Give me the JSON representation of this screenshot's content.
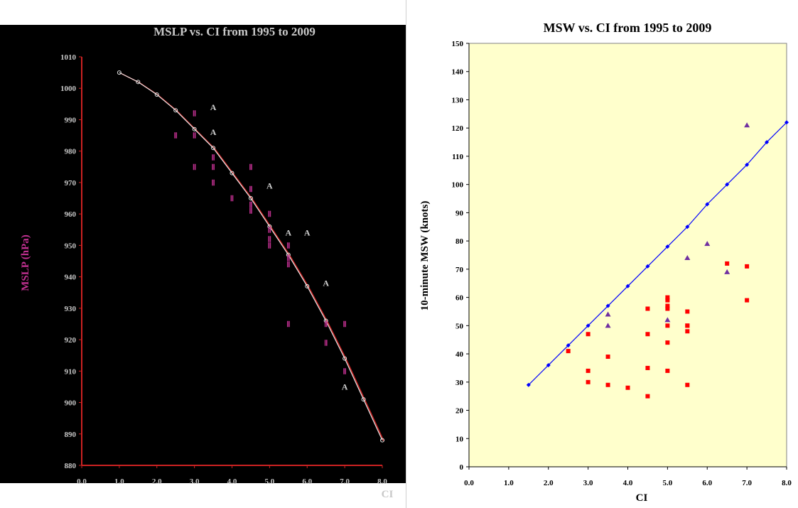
{
  "chart_data": [
    {
      "type": "scatter",
      "title": "MSLP vs. CI from 1995 to 2009",
      "xlabel": "CI",
      "ylabel": "MSLP (hPa)",
      "xlim": [
        0,
        8
      ],
      "ylim": [
        880,
        1010
      ],
      "x_ticks": [
        "0.0",
        "1.0",
        "2.0",
        "3.0",
        "4.0",
        "5.0",
        "6.0",
        "7.0",
        "8.0"
      ],
      "y_ticks": [
        "880",
        "890",
        "900",
        "910",
        "920",
        "930",
        "940",
        "950",
        "960",
        "970",
        "980",
        "990",
        "1000",
        "1010"
      ],
      "grid": false,
      "legend": "none",
      "colors": {
        "background": "#000000",
        "curve": "#e8e8e8",
        "curve_shadow": "#cc2222",
        "markers": "#c03090",
        "axis": "#cc2222",
        "text": "#c8c8c8"
      },
      "series": [
        {
          "marker": "line-circle",
          "x": [
            1.0,
            1.5,
            2.0,
            2.5,
            3.0,
            3.5,
            4.0,
            4.5,
            5.0,
            5.5,
            6.0,
            6.5,
            7.0,
            7.5,
            8.0
          ],
          "y": [
            1005,
            1002,
            998,
            993,
            987,
            981,
            973,
            965,
            956,
            947,
            937,
            926,
            914,
            901,
            888
          ]
        },
        {
          "marker": "triangle",
          "x": [
            3.5,
            3.5,
            5.0,
            5.5,
            6.0,
            6.5,
            7.0
          ],
          "y": [
            994,
            986,
            969,
            954,
            954,
            938,
            905
          ]
        },
        {
          "marker": "square",
          "x": [
            2.5,
            3.0,
            3.0,
            3.0,
            3.5,
            3.5,
            3.5,
            4.0,
            4.5,
            4.5,
            4.5,
            4.5,
            5.0,
            5.0,
            5.0,
            5.0,
            5.5,
            5.5,
            5.5,
            5.5,
            6.5,
            6.5,
            7.0,
            7.0
          ],
          "y": [
            985,
            992,
            985,
            975,
            975,
            970,
            978,
            965,
            975,
            968,
            961,
            963,
            960,
            955,
            950,
            952,
            950,
            946,
            925,
            944,
            925,
            919,
            925,
            910
          ]
        }
      ]
    },
    {
      "type": "scatter",
      "title": "MSW vs. CI  from 1995 to 2009",
      "xlabel": "CI",
      "ylabel": "10-minute MSW (knots)",
      "xlim": [
        0,
        8
      ],
      "ylim": [
        0,
        150
      ],
      "x_ticks": [
        "0.0",
        "1.0",
        "2.0",
        "3.0",
        "4.0",
        "5.0",
        "6.0",
        "7.0",
        "8.0"
      ],
      "y_ticks": [
        "0",
        "10",
        "20",
        "30",
        "40",
        "50",
        "60",
        "70",
        "80",
        "90",
        "100",
        "110",
        "120",
        "130",
        "140",
        "150"
      ],
      "grid": false,
      "legend": "none",
      "colors": {
        "background": "#ffffcc",
        "line": "#0000ff",
        "triangle": "#7030a0",
        "square": "#ff0000"
      },
      "series": [
        {
          "marker": "line-diamond",
          "x": [
            1.5,
            2.0,
            2.5,
            3.0,
            3.5,
            4.0,
            4.5,
            5.0,
            5.5,
            6.0,
            6.5,
            7.0,
            7.5,
            8.0
          ],
          "y": [
            29,
            36,
            43,
            50,
            57,
            64,
            71,
            78,
            85,
            93,
            100,
            107,
            115,
            122
          ]
        },
        {
          "marker": "triangle",
          "x": [
            3.5,
            3.5,
            5.0,
            5.5,
            6.0,
            6.5,
            7.0
          ],
          "y": [
            54,
            50,
            52,
            74,
            79,
            69,
            121
          ]
        },
        {
          "marker": "square",
          "x": [
            2.5,
            3.0,
            3.0,
            3.0,
            3.5,
            3.5,
            4.0,
            4.5,
            4.5,
            4.5,
            4.5,
            5.0,
            5.0,
            5.0,
            5.0,
            5.0,
            5.0,
            5.0,
            5.5,
            5.5,
            5.5,
            5.5,
            5.5,
            6.5,
            7.0,
            7.0
          ],
          "y": [
            41,
            47,
            34,
            30,
            39,
            29,
            28,
            56,
            47,
            35,
            25,
            59,
            57,
            50,
            44,
            34,
            60,
            56,
            55,
            50,
            48,
            29,
            50,
            72,
            71,
            59
          ]
        }
      ]
    }
  ]
}
